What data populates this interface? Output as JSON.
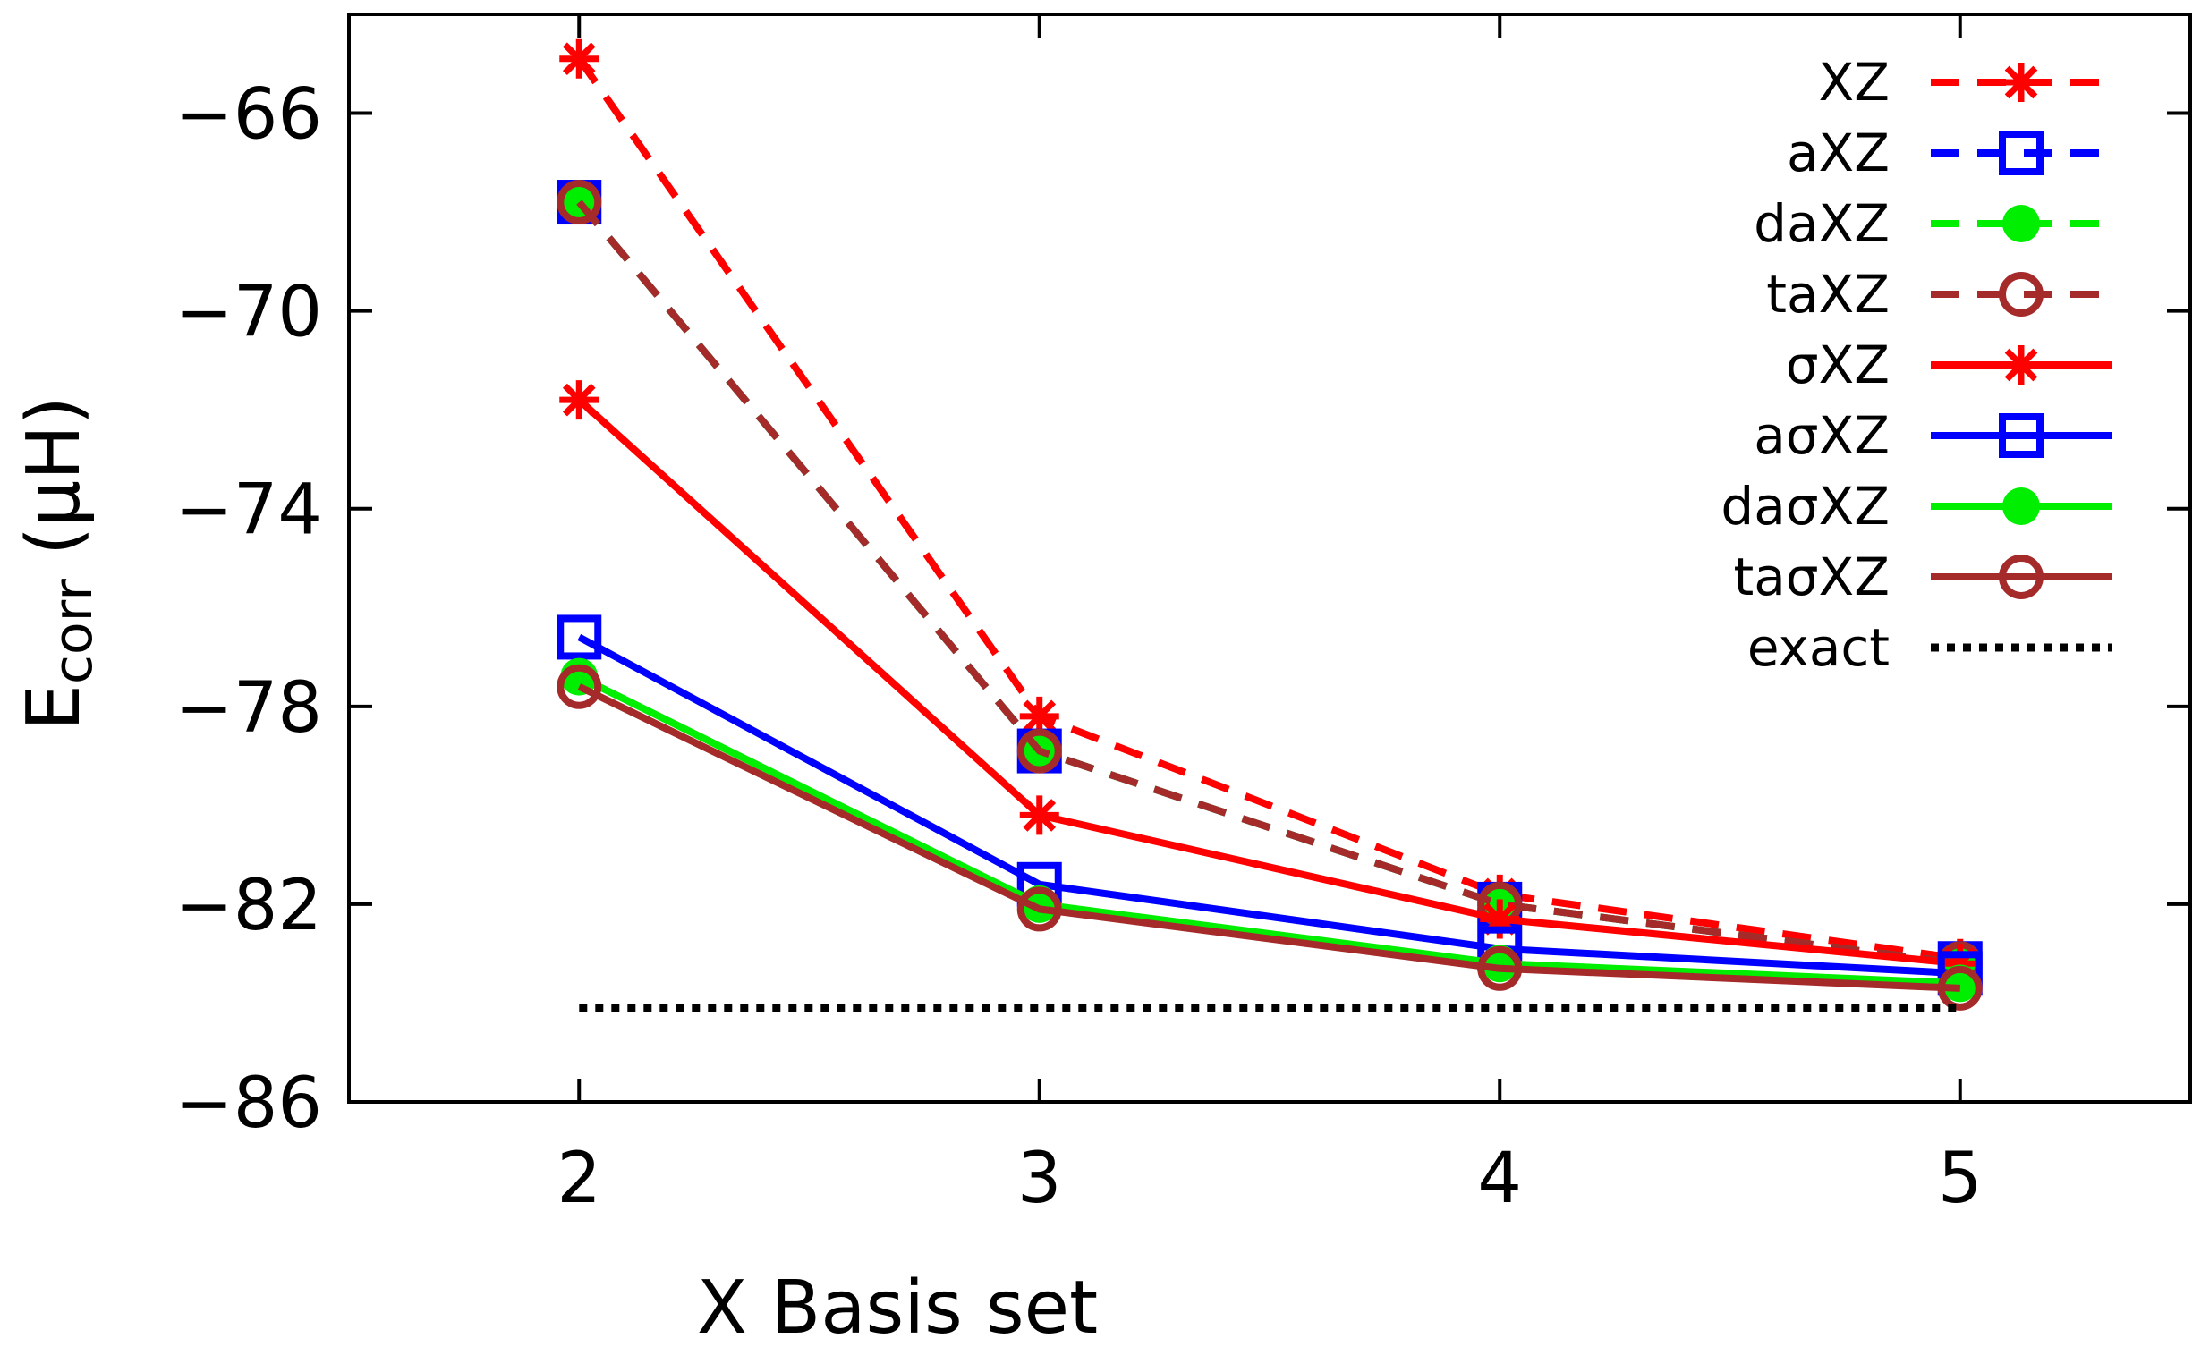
{
  "chart_data": {
    "type": "line",
    "title": "",
    "xlabel": "X Basis set",
    "ylabel_main": "E",
    "ylabel_sub": "corr",
    "ylabel_unit": " (μH)",
    "x": [
      2,
      3,
      4,
      5
    ],
    "xlim": [
      1.5,
      5.5
    ],
    "ylim": [
      -86,
      -64
    ],
    "xticks": [
      2,
      3,
      4,
      5
    ],
    "xtick_labels": [
      "2",
      "3",
      "4",
      "5"
    ],
    "yticks": [
      -66,
      -70,
      -74,
      -78,
      -82,
      -86
    ],
    "ytick_labels": [
      "−66",
      "−70",
      "−74",
      "−78",
      "−82",
      "−86"
    ],
    "grid": false,
    "legend_position": "top-right",
    "series": [
      {
        "name": "XZ",
        "values": [
          -64.9,
          -78.2,
          -81.8,
          -83.1
        ],
        "color": "#ff0000",
        "dash": "dashed",
        "marker": "star"
      },
      {
        "name": "aXZ",
        "values": [
          -67.8,
          -78.9,
          -82.0,
          -83.2
        ],
        "color": "#0000ff",
        "dash": "dashed",
        "marker": "square"
      },
      {
        "name": "daXZ",
        "values": [
          -67.8,
          -78.9,
          -82.0,
          -83.2
        ],
        "color": "#00ee00",
        "dash": "dashed",
        "marker": "dot"
      },
      {
        "name": "taXZ",
        "values": [
          -67.8,
          -78.9,
          -82.0,
          -83.2
        ],
        "color": "#a52a2a",
        "dash": "dashed",
        "marker": "circle"
      },
      {
        "name": "σXZ",
        "values": [
          -71.8,
          -80.2,
          -82.3,
          -83.2
        ],
        "color": "#ff0000",
        "dash": "solid",
        "marker": "star"
      },
      {
        "name": "aσXZ",
        "values": [
          -76.6,
          -81.6,
          -82.9,
          -83.4
        ],
        "color": "#0000ff",
        "dash": "solid",
        "marker": "square"
      },
      {
        "name": "daσXZ",
        "values": [
          -77.4,
          -82.0,
          -83.2,
          -83.6
        ],
        "color": "#00ee00",
        "dash": "solid",
        "marker": "dot"
      },
      {
        "name": "taσXZ",
        "values": [
          -77.6,
          -82.1,
          -83.3,
          -83.7
        ],
        "color": "#a52a2a",
        "dash": "solid",
        "marker": "circle"
      },
      {
        "name": "exact",
        "values": [
          -84.1,
          -84.1,
          -84.1,
          -84.1
        ],
        "color": "#000000",
        "dash": "dotted",
        "marker": "none"
      }
    ]
  }
}
